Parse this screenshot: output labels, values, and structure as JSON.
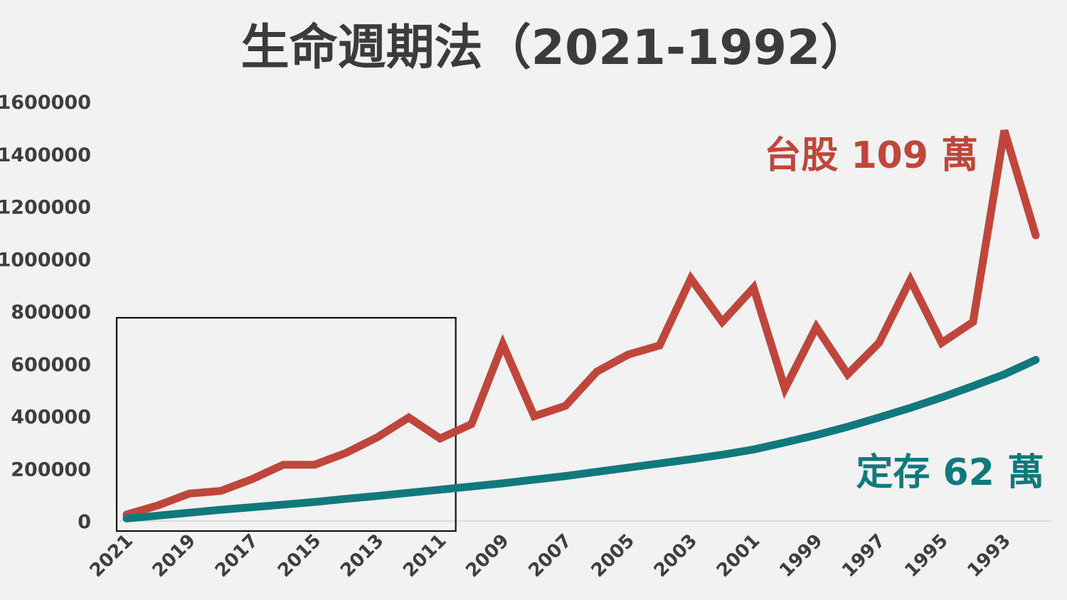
{
  "chart_data": {
    "type": "line",
    "title": "生命週期法（2021-1992）",
    "x": [
      2021,
      2020,
      2019,
      2018,
      2017,
      2016,
      2015,
      2014,
      2013,
      2012,
      2011,
      2010,
      2009,
      2008,
      2007,
      2006,
      2005,
      2004,
      2003,
      2002,
      2001,
      2000,
      1999,
      1998,
      1997,
      1996,
      1995,
      1994,
      1993,
      1992
    ],
    "x_tick_labels": [
      "2021",
      "2019",
      "2017",
      "2015",
      "2013",
      "2011",
      "2009",
      "2007",
      "2005",
      "2003",
      "2001",
      "1999",
      "1997",
      "1995",
      "1993"
    ],
    "y_tick_labels": [
      "0",
      "200000",
      "400000",
      "600000",
      "800000",
      "1000000",
      "1200000",
      "1400000",
      "1600000"
    ],
    "ylim": [
      0,
      1600000
    ],
    "series": [
      {
        "name": "台股",
        "color": "#c0453a",
        "values": [
          25000,
          60000,
          105000,
          115000,
          160000,
          215000,
          215000,
          260000,
          320000,
          395000,
          315000,
          370000,
          675000,
          400000,
          440000,
          570000,
          635000,
          670000,
          925000,
          760000,
          890000,
          505000,
          740000,
          560000,
          680000,
          920000,
          680000,
          760000,
          1490000,
          1090000
        ]
      },
      {
        "name": "定存",
        "color": "#11787c",
        "values": [
          10000,
          21000,
          32000,
          43000,
          53000,
          63000,
          73000,
          85000,
          96000,
          108000,
          120000,
          132000,
          144000,
          158000,
          172000,
          188000,
          204000,
          220000,
          236000,
          253000,
          273000,
          300000,
          328000,
          360000,
          395000,
          432000,
          472000,
          515000,
          560000,
          615000
        ]
      }
    ],
    "annotations": [
      {
        "text": "台股 109 萬",
        "color": "#c0453a"
      },
      {
        "text": "定存 62 萬",
        "color": "#11787c"
      }
    ],
    "grid": false,
    "highlight_box": {
      "from": 2021,
      "to": 2011,
      "color": "#111111"
    }
  }
}
